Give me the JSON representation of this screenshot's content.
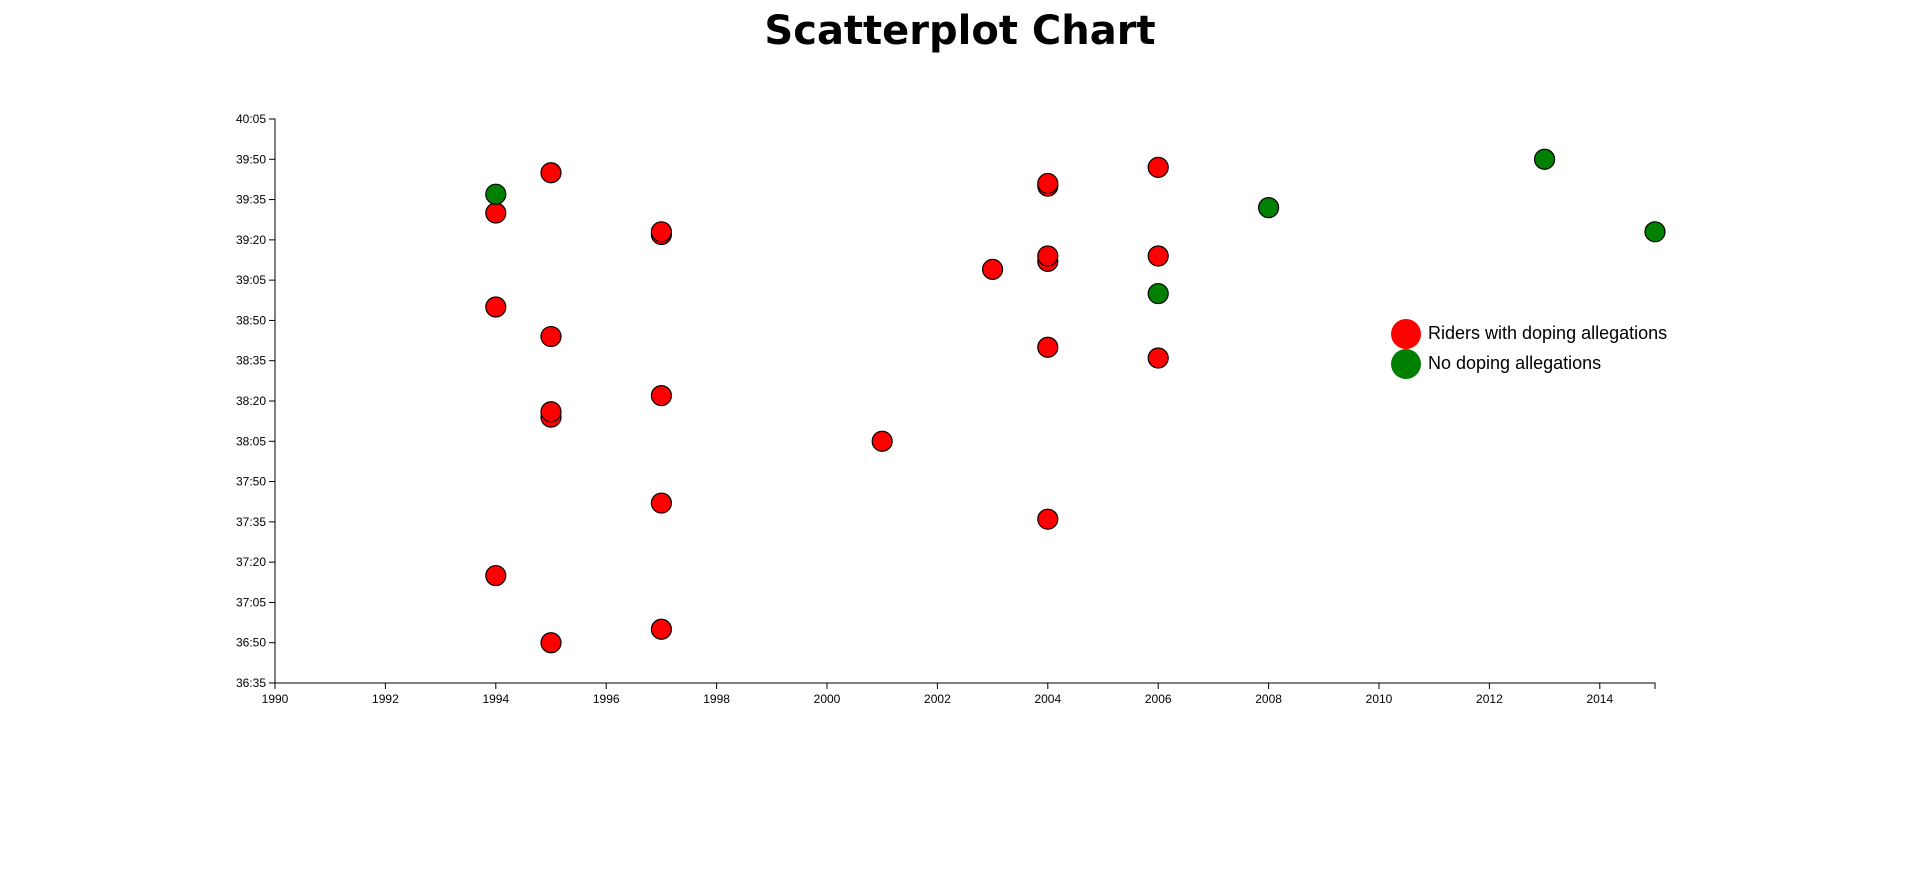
{
  "title": "Scatterplot Chart",
  "chart_data": {
    "type": "scatter",
    "title": "Scatterplot Chart",
    "xlabel": "",
    "ylabel": "",
    "xlim": [
      1990,
      2015
    ],
    "ylim": [
      "36:35",
      "40:05"
    ],
    "x_ticks": [
      "1990",
      "1992",
      "1994",
      "1996",
      "1998",
      "2000",
      "2002",
      "2004",
      "2006",
      "2008",
      "2010",
      "2012",
      "2014"
    ],
    "y_ticks": [
      "36:35",
      "36:50",
      "37:05",
      "37:20",
      "37:35",
      "37:50",
      "38:05",
      "38:20",
      "38:35",
      "38:50",
      "39:05",
      "39:20",
      "39:35",
      "39:50",
      "40:05"
    ],
    "colors": {
      "doping": "#ff0000",
      "clean": "#008000"
    },
    "legend": {
      "position": "right",
      "entries": [
        {
          "label": "Riders with doping allegations",
          "color": "#ff0000"
        },
        {
          "label": "No doping allegations",
          "color": "#008000"
        }
      ]
    },
    "grid": false,
    "series": [
      {
        "name": "Riders with doping allegations",
        "points": [
          {
            "x": 1994,
            "y": "39:30"
          },
          {
            "x": 1994,
            "y": "38:55"
          },
          {
            "x": 1994,
            "y": "37:15"
          },
          {
            "x": 1995,
            "y": "39:45"
          },
          {
            "x": 1995,
            "y": "38:44"
          },
          {
            "x": 1995,
            "y": "38:14"
          },
          {
            "x": 1995,
            "y": "38:16"
          },
          {
            "x": 1995,
            "y": "36:50"
          },
          {
            "x": 1997,
            "y": "39:22"
          },
          {
            "x": 1997,
            "y": "39:23"
          },
          {
            "x": 1997,
            "y": "38:22"
          },
          {
            "x": 1997,
            "y": "37:42"
          },
          {
            "x": 1997,
            "y": "36:55"
          },
          {
            "x": 2001,
            "y": "38:05"
          },
          {
            "x": 2003,
            "y": "39:09"
          },
          {
            "x": 2004,
            "y": "39:40"
          },
          {
            "x": 2004,
            "y": "39:41"
          },
          {
            "x": 2004,
            "y": "39:12"
          },
          {
            "x": 2004,
            "y": "39:14"
          },
          {
            "x": 2004,
            "y": "38:40"
          },
          {
            "x": 2004,
            "y": "37:36"
          },
          {
            "x": 2006,
            "y": "39:47"
          },
          {
            "x": 2006,
            "y": "39:14"
          },
          {
            "x": 2006,
            "y": "38:36"
          }
        ]
      },
      {
        "name": "No doping allegations",
        "points": [
          {
            "x": 1994,
            "y": "39:37"
          },
          {
            "x": 2006,
            "y": "39:00"
          },
          {
            "x": 2008,
            "y": "39:32"
          },
          {
            "x": 2013,
            "y": "39:50"
          },
          {
            "x": 2015,
            "y": "39:23"
          }
        ]
      }
    ]
  }
}
